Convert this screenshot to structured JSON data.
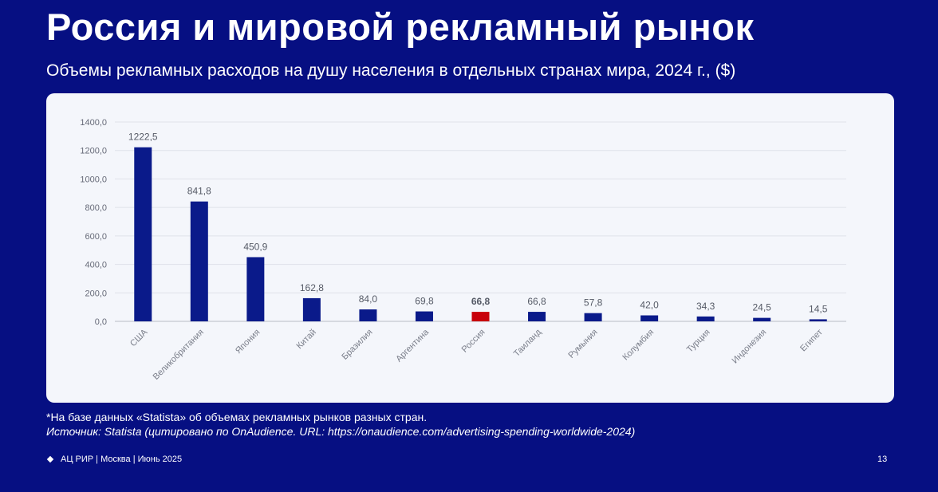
{
  "header": {
    "title": "Россия и мировой рекламный рынок",
    "subtitle": "Объемы рекламных расходов на душу населения в отдельных странах мира, 2024 г., ($)"
  },
  "chart_data": {
    "type": "bar",
    "title": "",
    "xlabel": "",
    "ylabel": "",
    "ylim": [
      0,
      1400
    ],
    "yticks": [
      "0,0",
      "200,0",
      "400,0",
      "600,0",
      "800,0",
      "1000,0",
      "1200,0",
      "1400,0"
    ],
    "grid": true,
    "categories": [
      "США",
      "Великобритания",
      "Япония",
      "Китай",
      "Бразилия",
      "Аргентина",
      "Россия",
      "Таиланд",
      "Румыния",
      "Колумбия",
      "Турция",
      "Индонезия",
      "Египет"
    ],
    "values": [
      1222.5,
      841.8,
      450.9,
      162.8,
      84.0,
      69.8,
      66.8,
      66.8,
      57.8,
      42.0,
      34.3,
      24.5,
      14.5
    ],
    "value_labels": [
      "1222,5",
      "841,8",
      "450,9",
      "162,8",
      "84,0",
      "69,8",
      "66,8",
      "66,8",
      "57,8",
      "42,0",
      "34,3",
      "24,5",
      "14,5"
    ],
    "highlight_category": "Россия",
    "colors": {
      "bar": "#0a1a8a",
      "highlight": "#c8000a"
    }
  },
  "footnote": "*На базе данных «Statista» об объемах рекламных рынков разных стран.",
  "source": "Источник: Statista (цитировано по OnAudience. URL: https://onaudience.com/advertising-spending-worldwide-2024)",
  "footer": {
    "org": "АЦ РИР | Москва | Июнь 2025",
    "page_number": "13"
  }
}
